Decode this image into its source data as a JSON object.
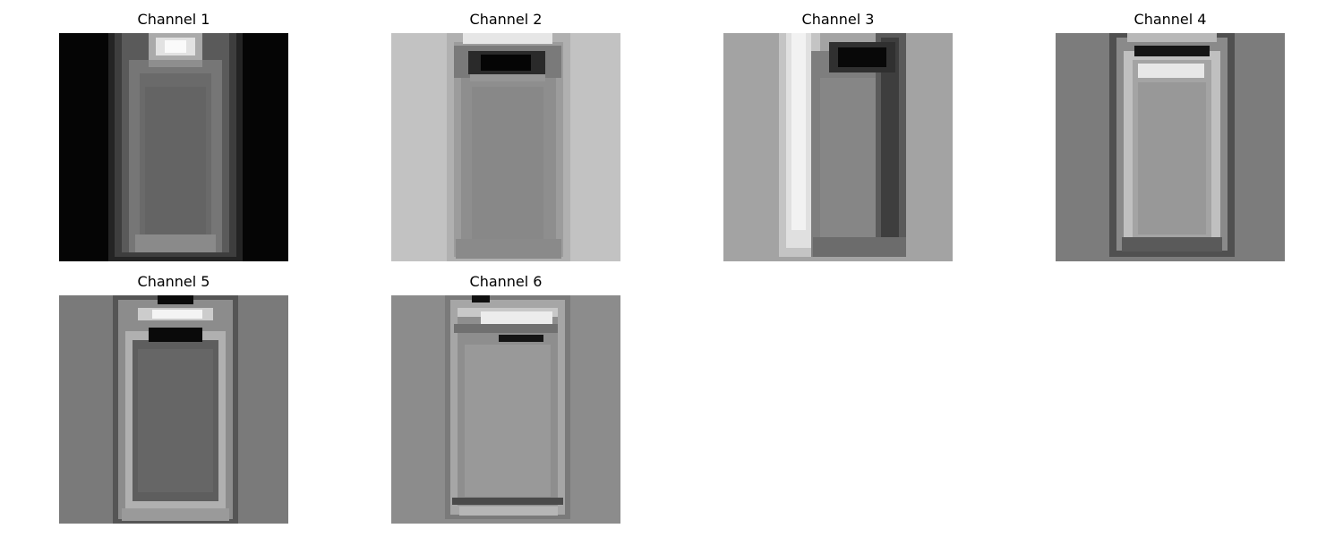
{
  "figure": {
    "panels": [
      {
        "title": "Channel 1",
        "background": "#050505"
      },
      {
        "title": "Channel 2",
        "background": "#c2c2c2"
      },
      {
        "title": "Channel 3",
        "background": "#a3a3a3"
      },
      {
        "title": "Channel 4",
        "background": "#7c7c7c"
      },
      {
        "title": "Channel 5",
        "background": "#7a7a7a"
      },
      {
        "title": "Channel 6",
        "background": "#8c8c8c"
      }
    ]
  }
}
